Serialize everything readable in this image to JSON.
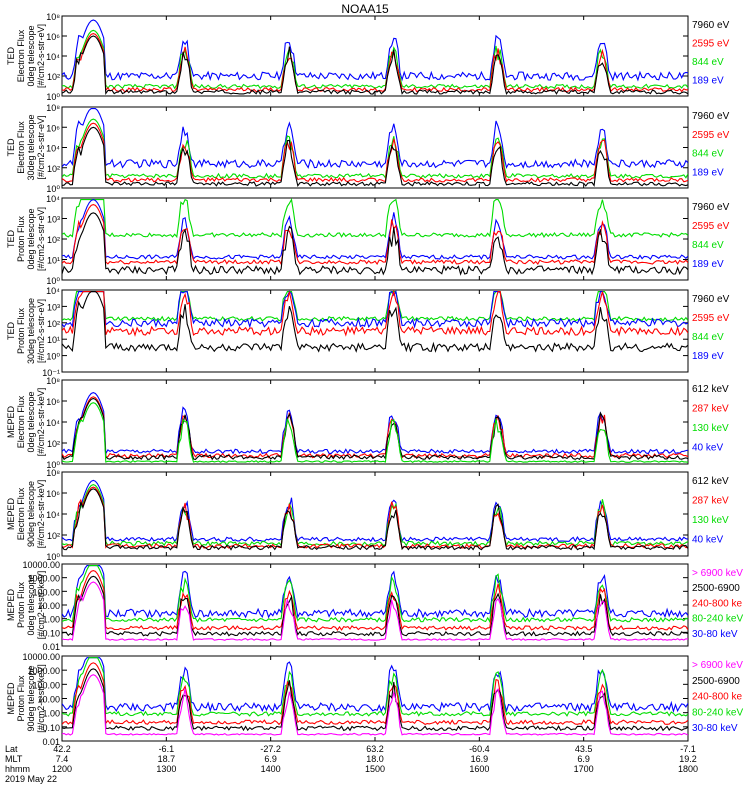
{
  "title": "NOAA15",
  "colors": {
    "black": "#000000",
    "red": "#ff0000",
    "green": "#00dd00",
    "blue": "#0000ff",
    "magenta": "#ff00ff"
  },
  "chart_data": [
    {
      "type": "line",
      "ylabel": [
        "TED",
        "Electron Flux",
        "0deg telescope",
        "[#/cm2-s-str-eV]"
      ],
      "yticks": [
        "10⁸",
        "10⁶",
        "10⁴",
        "10²",
        "10⁰"
      ],
      "yscale": "log",
      "legend": [
        {
          "label": "7960 eV",
          "color": "black"
        },
        {
          "label": "2595 eV",
          "color": "red"
        },
        {
          "label": "844 eV",
          "color": "green"
        },
        {
          "label": "189 eV",
          "color": "blue"
        }
      ],
      "series": [
        {
          "color": "blue",
          "baseline": 0.25,
          "noise": 0.1
        },
        {
          "color": "green",
          "baseline": 0.12,
          "noise": 0.05
        },
        {
          "color": "red",
          "baseline": 0.08,
          "noise": 0.05
        },
        {
          "color": "black",
          "baseline": 0.05,
          "noise": 0.05
        }
      ]
    },
    {
      "type": "line",
      "ylabel": [
        "TED",
        "Electron Flux",
        "30deg telescope",
        "[#/cm2-s-str-eV]"
      ],
      "yticks": [
        "10⁸",
        "10⁶",
        "10⁴",
        "10²",
        "10⁰"
      ],
      "yscale": "log",
      "legend": [
        {
          "label": "7960 eV",
          "color": "black"
        },
        {
          "label": "2595 eV",
          "color": "red"
        },
        {
          "label": "844 eV",
          "color": "green"
        },
        {
          "label": "189 eV",
          "color": "blue"
        }
      ],
      "series": [
        {
          "color": "blue",
          "baseline": 0.3,
          "noise": 0.1
        },
        {
          "color": "green",
          "baseline": 0.15,
          "noise": 0.05
        },
        {
          "color": "red",
          "baseline": 0.1,
          "noise": 0.05
        },
        {
          "color": "black",
          "baseline": 0.05,
          "noise": 0.05
        }
      ]
    },
    {
      "type": "line",
      "ylabel": [
        "TED",
        "Proton Flux",
        "0deg telescope",
        "[#/cm2-s-str-eV]"
      ],
      "yticks": [
        "10⁴",
        "10³",
        "10²",
        "10¹",
        "10⁰"
      ],
      "yscale": "log",
      "legend": [
        {
          "label": "7960 eV",
          "color": "black"
        },
        {
          "label": "2595 eV",
          "color": "red"
        },
        {
          "label": "844 eV",
          "color": "green"
        },
        {
          "label": "189 eV",
          "color": "blue"
        }
      ],
      "series": [
        {
          "color": "green",
          "baseline": 0.55,
          "noise": 0.05
        },
        {
          "color": "blue",
          "baseline": 0.28,
          "noise": 0.05
        },
        {
          "color": "red",
          "baseline": 0.22,
          "noise": 0.05
        },
        {
          "color": "black",
          "baseline": 0.12,
          "noise": 0.1
        }
      ]
    },
    {
      "type": "line",
      "ylabel": [
        "TED",
        "Proton Flux",
        "30deg telescope",
        "[#/cm2-s-str-eV]"
      ],
      "yticks": [
        "10⁴",
        "10³",
        "10²",
        "10¹",
        "10⁰",
        "10⁻¹"
      ],
      "yscale": "log",
      "legend": [
        {
          "label": "7960 eV",
          "color": "black"
        },
        {
          "label": "2595 eV",
          "color": "red"
        },
        {
          "label": "844 eV",
          "color": "green"
        },
        {
          "label": "189 eV",
          "color": "blue"
        }
      ],
      "series": [
        {
          "color": "green",
          "baseline": 0.65,
          "noise": 0.05
        },
        {
          "color": "blue",
          "baseline": 0.6,
          "noise": 0.1
        },
        {
          "color": "red",
          "baseline": 0.5,
          "noise": 0.1
        },
        {
          "color": "black",
          "baseline": 0.3,
          "noise": 0.1
        }
      ]
    },
    {
      "type": "line",
      "ylabel": [
        "MEPED",
        "Electron Flux",
        "0deg telescope",
        "[#/cm2-s-str-keV]"
      ],
      "yticks": [
        "10⁸",
        "10⁶",
        "10⁴",
        "10²",
        "10⁰"
      ],
      "yscale": "log",
      "legend": [
        {
          "label": "612 keV",
          "color": "black"
        },
        {
          "label": "287 keV",
          "color": "red"
        },
        {
          "label": "130 keV",
          "color": "green"
        },
        {
          "label": "40 keV",
          "color": "blue"
        }
      ],
      "series": [
        {
          "color": "blue",
          "baseline": 0.15,
          "noise": 0.05
        },
        {
          "color": "red",
          "baseline": 0.1,
          "noise": 0.05
        },
        {
          "color": "black",
          "baseline": 0.08,
          "noise": 0.05
        },
        {
          "color": "green",
          "baseline": 0.03,
          "noise": 0.02
        }
      ]
    },
    {
      "type": "line",
      "ylabel": [
        "MEPED",
        "Electron Flux",
        "90deg telescope",
        "[#/cm2-s-str-keV]"
      ],
      "yticks": [
        "10⁸",
        "10⁶",
        "10⁴",
        "10²",
        "10⁰"
      ],
      "yscale": "log",
      "legend": [
        {
          "label": "612 keV",
          "color": "black"
        },
        {
          "label": "287 keV",
          "color": "red"
        },
        {
          "label": "130 keV",
          "color": "green"
        },
        {
          "label": "40 keV",
          "color": "blue"
        }
      ],
      "series": [
        {
          "color": "blue",
          "baseline": 0.2,
          "noise": 0.05
        },
        {
          "color": "green",
          "baseline": 0.15,
          "noise": 0.05
        },
        {
          "color": "red",
          "baseline": 0.12,
          "noise": 0.05
        },
        {
          "color": "black",
          "baseline": 0.1,
          "noise": 0.05
        }
      ]
    },
    {
      "type": "line",
      "ylabel": [
        "MEPED",
        "Proton Flux",
        "0deg telescope",
        "[#/cm2-s-str-keV]"
      ],
      "yticks": [
        "10000.00",
        "1000.00",
        "100.00",
        "10.00",
        "1.00",
        "0.10",
        "0.01"
      ],
      "yscale": "log",
      "legend": [
        {
          "label": "> 6900 keV",
          "color": "magenta"
        },
        {
          "label": "2500-6900",
          "color": "black"
        },
        {
          "label": "240-800 ke",
          "color": "red"
        },
        {
          "label": "80-240 keV",
          "color": "green"
        },
        {
          "label": "30-80 keV",
          "color": "blue"
        }
      ],
      "series": [
        {
          "color": "blue",
          "baseline": 0.4,
          "noise": 0.1
        },
        {
          "color": "green",
          "baseline": 0.32,
          "noise": 0.05
        },
        {
          "color": "red",
          "baseline": 0.22,
          "noise": 0.05
        },
        {
          "color": "black",
          "baseline": 0.15,
          "noise": 0.05
        },
        {
          "color": "magenta",
          "baseline": 0.08,
          "noise": 0.02
        }
      ]
    },
    {
      "type": "line",
      "ylabel": [
        "MEPED",
        "Proton Flux",
        "90deg telescope",
        "[#/cm2-s-str-keV]"
      ],
      "yticks": [
        "10000.00",
        "1000.00",
        "100.00",
        "10.00",
        "1.00",
        "0.10",
        "0.01"
      ],
      "yscale": "log",
      "legend": [
        {
          "label": "> 6900 keV",
          "color": "magenta"
        },
        {
          "label": "2500-6900",
          "color": "black"
        },
        {
          "label": "240-800 ke",
          "color": "red"
        },
        {
          "label": "80-240 keV",
          "color": "green"
        },
        {
          "label": "30-80 keV",
          "color": "blue"
        }
      ],
      "series": [
        {
          "color": "blue",
          "baseline": 0.4,
          "noise": 0.1
        },
        {
          "color": "green",
          "baseline": 0.32,
          "noise": 0.05
        },
        {
          "color": "red",
          "baseline": 0.22,
          "noise": 0.05
        },
        {
          "color": "black",
          "baseline": 0.15,
          "noise": 0.05
        },
        {
          "color": "magenta",
          "baseline": 0.08,
          "noise": 0.02
        }
      ]
    }
  ],
  "x_axis": {
    "row_labels": [
      "Lat",
      "MLT",
      "hhmm"
    ],
    "ticks": [
      {
        "lat": "42.2",
        "mlt": "7.4",
        "hhmm": "1200"
      },
      {
        "lat": "-6.1",
        "mlt": "18.7",
        "hhmm": "1300"
      },
      {
        "lat": "-27.2",
        "mlt": "6.9",
        "hhmm": "1400"
      },
      {
        "lat": "63.2",
        "mlt": "18.0",
        "hhmm": "1500"
      },
      {
        "lat": "-60.4",
        "mlt": "16.9",
        "hhmm": "1600"
      },
      {
        "lat": "43.5",
        "mlt": "6.9",
        "hhmm": "1700"
      },
      {
        "lat": "-7.1",
        "mlt": "19.2",
        "hhmm": "1800"
      }
    ],
    "date": "2019 May 22"
  }
}
